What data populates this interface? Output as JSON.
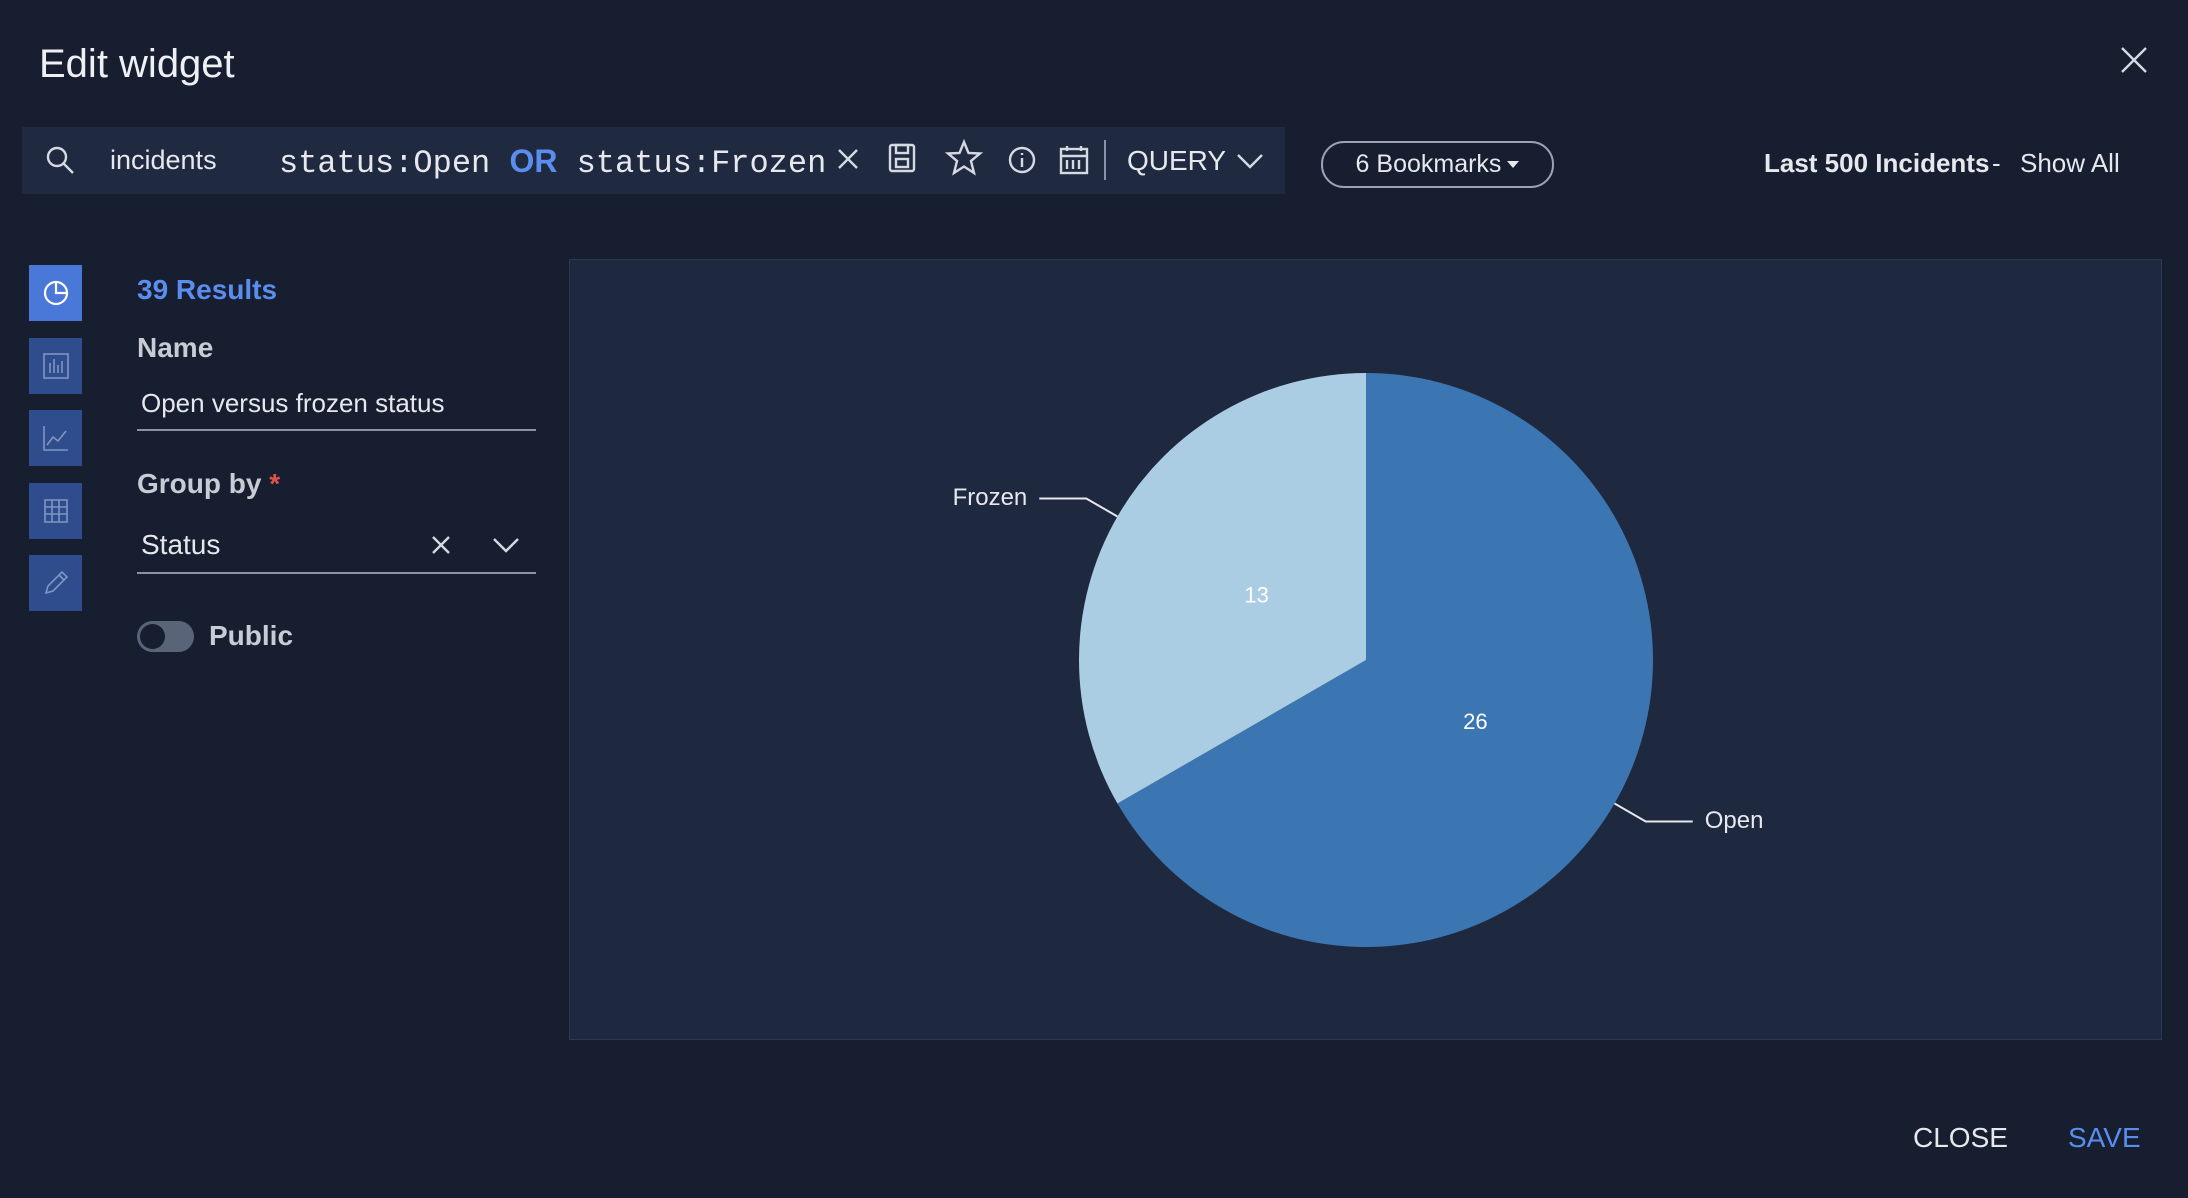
{
  "header": {
    "title": "Edit widget"
  },
  "search": {
    "scope": "incidents",
    "query": [
      "status:Open",
      "OR",
      "status:Frozen"
    ],
    "mode": "QUERY",
    "bookmarks": "6 Bookmarks",
    "limit": "Last 500 Incidents",
    "separator": "-",
    "show_all": "Show All"
  },
  "form": {
    "results": "39 Results",
    "name_label": "Name",
    "name_value": "Open versus frozen status",
    "group_label": "Group by",
    "required": "*",
    "group_value": "Status",
    "public_label": "Public"
  },
  "footer": {
    "close": "CLOSE",
    "save": "SAVE"
  },
  "chart_data": {
    "type": "pie",
    "categories": [
      "Open",
      "Frozen"
    ],
    "values": [
      26,
      13
    ],
    "colors": [
      "#3b76b3",
      "#abcde3"
    ],
    "start_angle": 0,
    "direction": "clockwise"
  }
}
